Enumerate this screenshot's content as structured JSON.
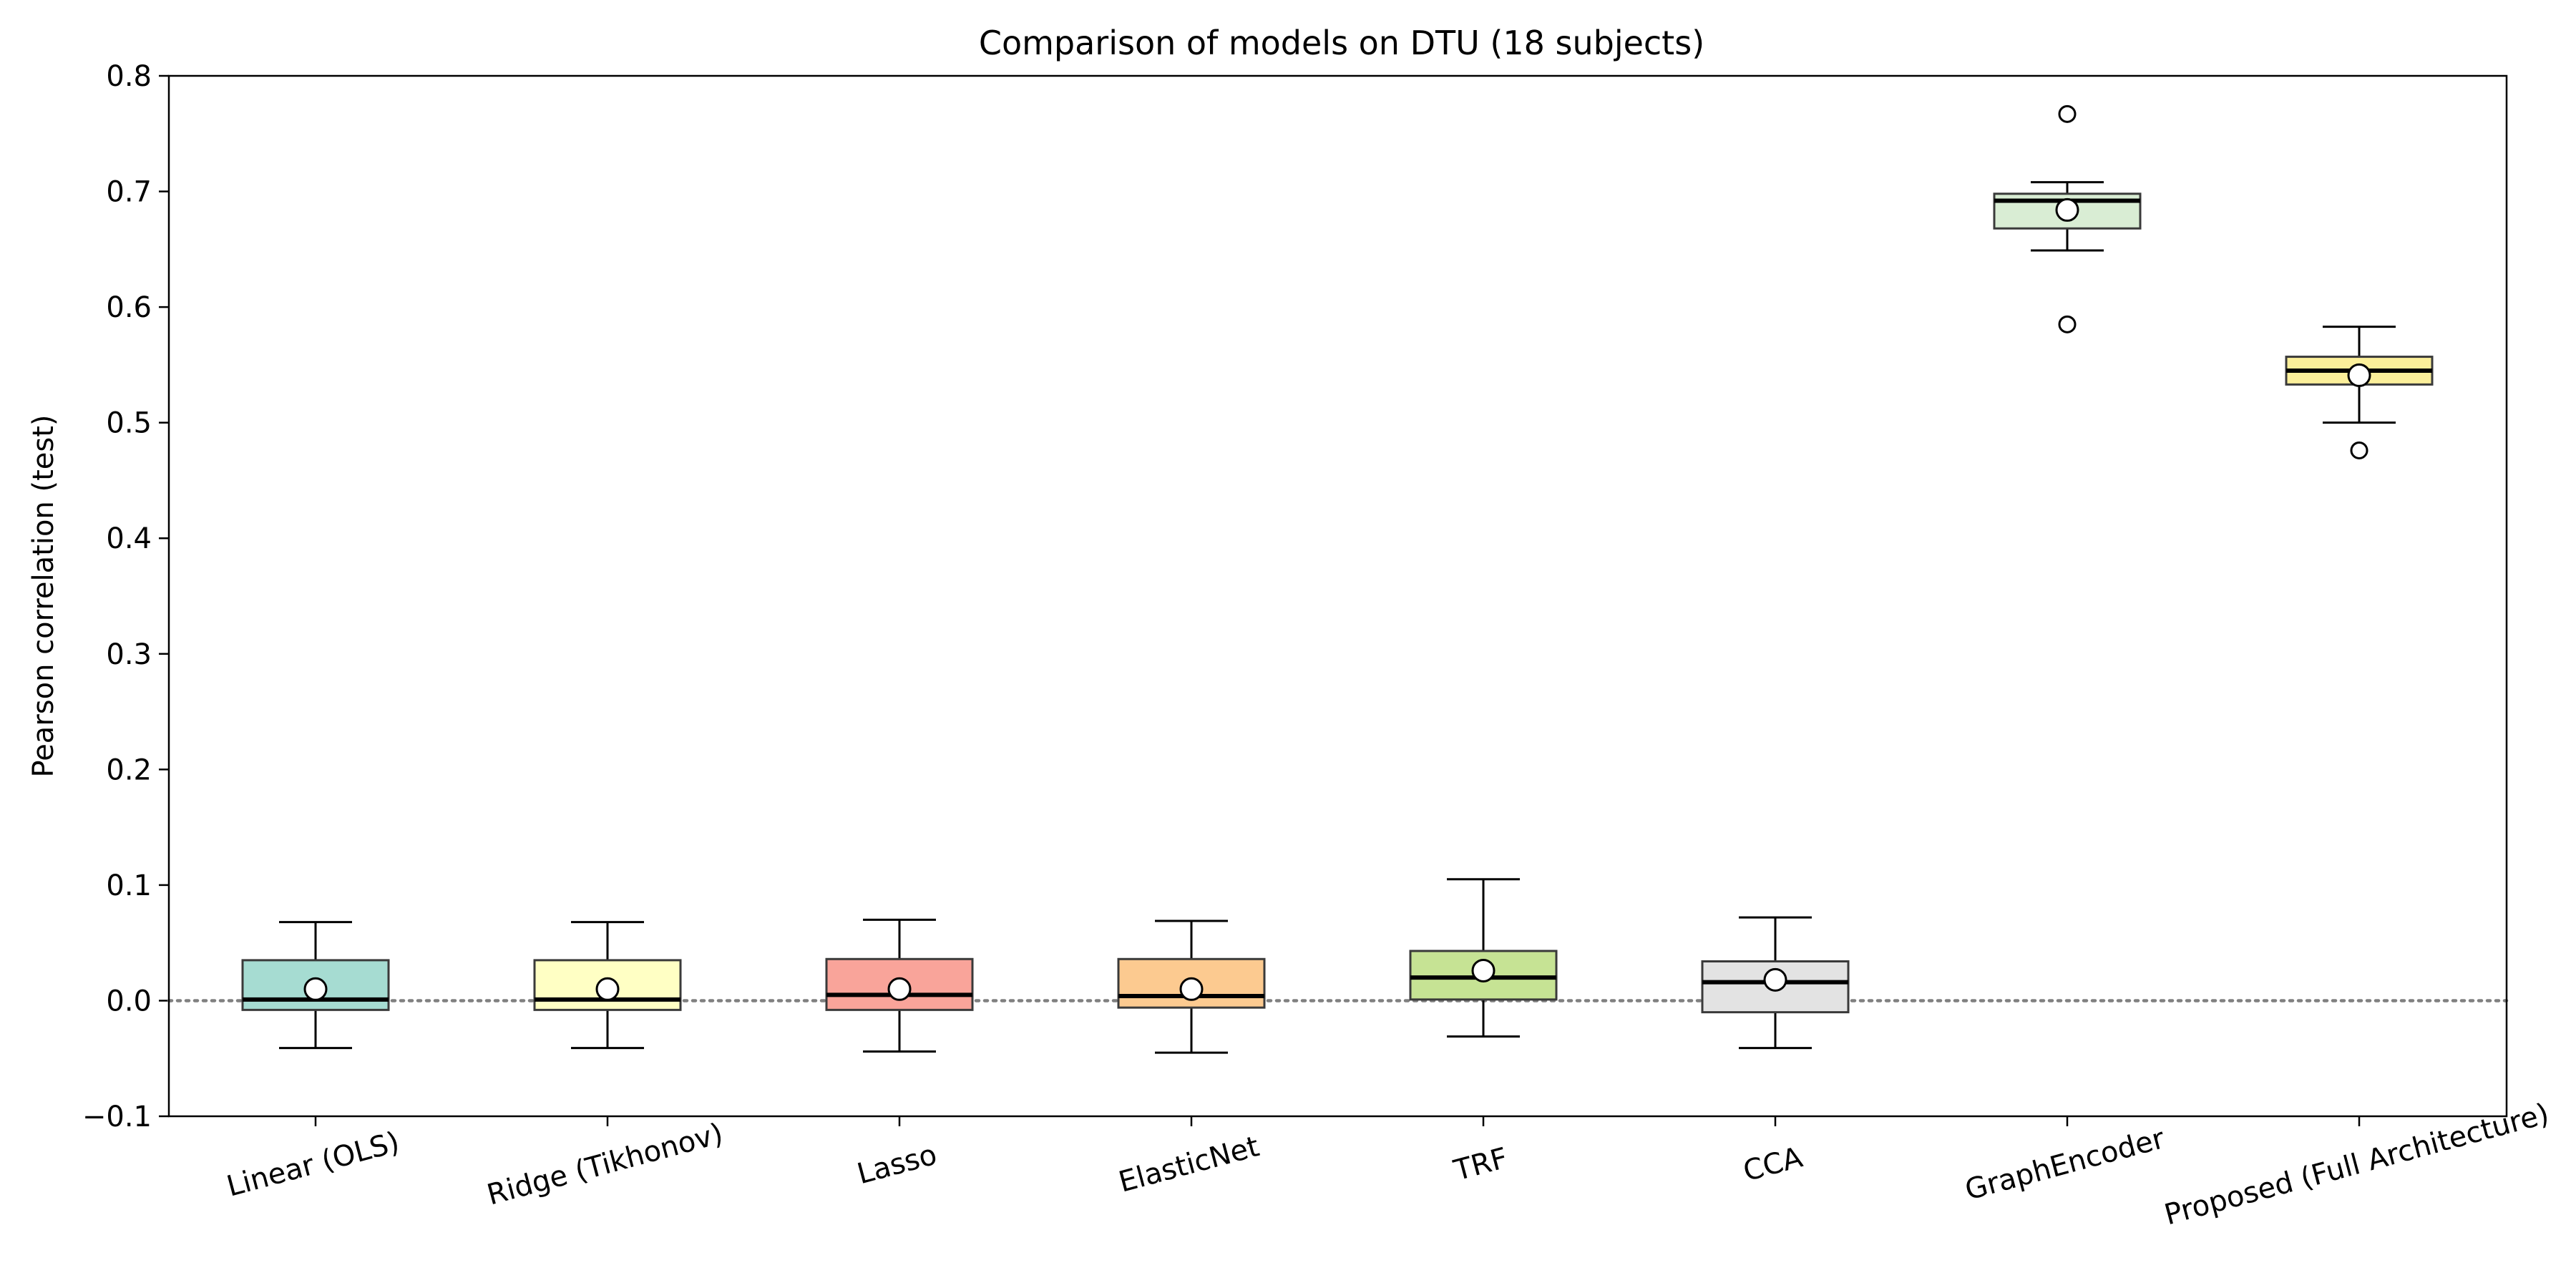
{
  "chart_data": {
    "type": "box",
    "title": "Comparison of models on DTU (18 subjects)",
    "xlabel": "",
    "ylabel": "Pearson correlation (test)",
    "ylim": [
      -0.1,
      0.8
    ],
    "yticks": [
      -0.1,
      0.0,
      0.1,
      0.2,
      0.3,
      0.4,
      0.5,
      0.6,
      0.7,
      0.8
    ],
    "ytick_labels": [
      "−0.1",
      "0.0",
      "0.1",
      "0.2",
      "0.3",
      "0.4",
      "0.5",
      "0.6",
      "0.7",
      "0.8"
    ],
    "reference_line": {
      "y": 0.0,
      "style": "dotted",
      "color": "#808080"
    },
    "grid": false,
    "legend": "none",
    "mean_marker": "white circle",
    "categories": [
      "Linear (OLS)",
      "Ridge (Tikhonov)",
      "Lasso",
      "ElasticNet",
      "TRF",
      "CCA",
      "GraphEncoder",
      "Proposed (Full Architecture)"
    ],
    "boxes": [
      {
        "name": "Linear (OLS)",
        "whisker_low": -0.041,
        "q1": -0.008,
        "median": 0.001,
        "q3": 0.035,
        "whisker_high": 0.068,
        "mean": 0.01,
        "outliers": [],
        "color": "#a6dcd2"
      },
      {
        "name": "Ridge (Tikhonov)",
        "whisker_low": -0.041,
        "q1": -0.008,
        "median": 0.001,
        "q3": 0.035,
        "whisker_high": 0.068,
        "mean": 0.01,
        "outliers": [],
        "color": "#ffffc4"
      },
      {
        "name": "Lasso",
        "whisker_low": -0.044,
        "q1": -0.008,
        "median": 0.005,
        "q3": 0.036,
        "whisker_high": 0.07,
        "mean": 0.01,
        "outliers": [],
        "color": "#f9a49a"
      },
      {
        "name": "ElasticNet",
        "whisker_low": -0.045,
        "q1": -0.006,
        "median": 0.004,
        "q3": 0.036,
        "whisker_high": 0.069,
        "mean": 0.01,
        "outliers": [],
        "color": "#fcca90"
      },
      {
        "name": "TRF",
        "whisker_low": -0.031,
        "q1": 0.001,
        "median": 0.02,
        "q3": 0.043,
        "whisker_high": 0.105,
        "mean": 0.026,
        "outliers": [],
        "color": "#c6e394"
      },
      {
        "name": "CCA",
        "whisker_low": -0.041,
        "q1": -0.01,
        "median": 0.016,
        "q3": 0.034,
        "whisker_high": 0.072,
        "mean": 0.018,
        "outliers": [],
        "color": "#e3e3e3"
      },
      {
        "name": "GraphEncoder",
        "whisker_low": 0.649,
        "q1": 0.668,
        "median": 0.692,
        "q3": 0.698,
        "whisker_high": 0.708,
        "mean": 0.684,
        "outliers": [
          0.767,
          0.585
        ],
        "color": "#d9edd4"
      },
      {
        "name": "Proposed (Full Architecture)",
        "whisker_low": 0.5,
        "q1": 0.533,
        "median": 0.545,
        "q3": 0.557,
        "whisker_high": 0.583,
        "mean": 0.541,
        "outliers": [
          0.476
        ],
        "color": "#fbef9a"
      }
    ]
  }
}
